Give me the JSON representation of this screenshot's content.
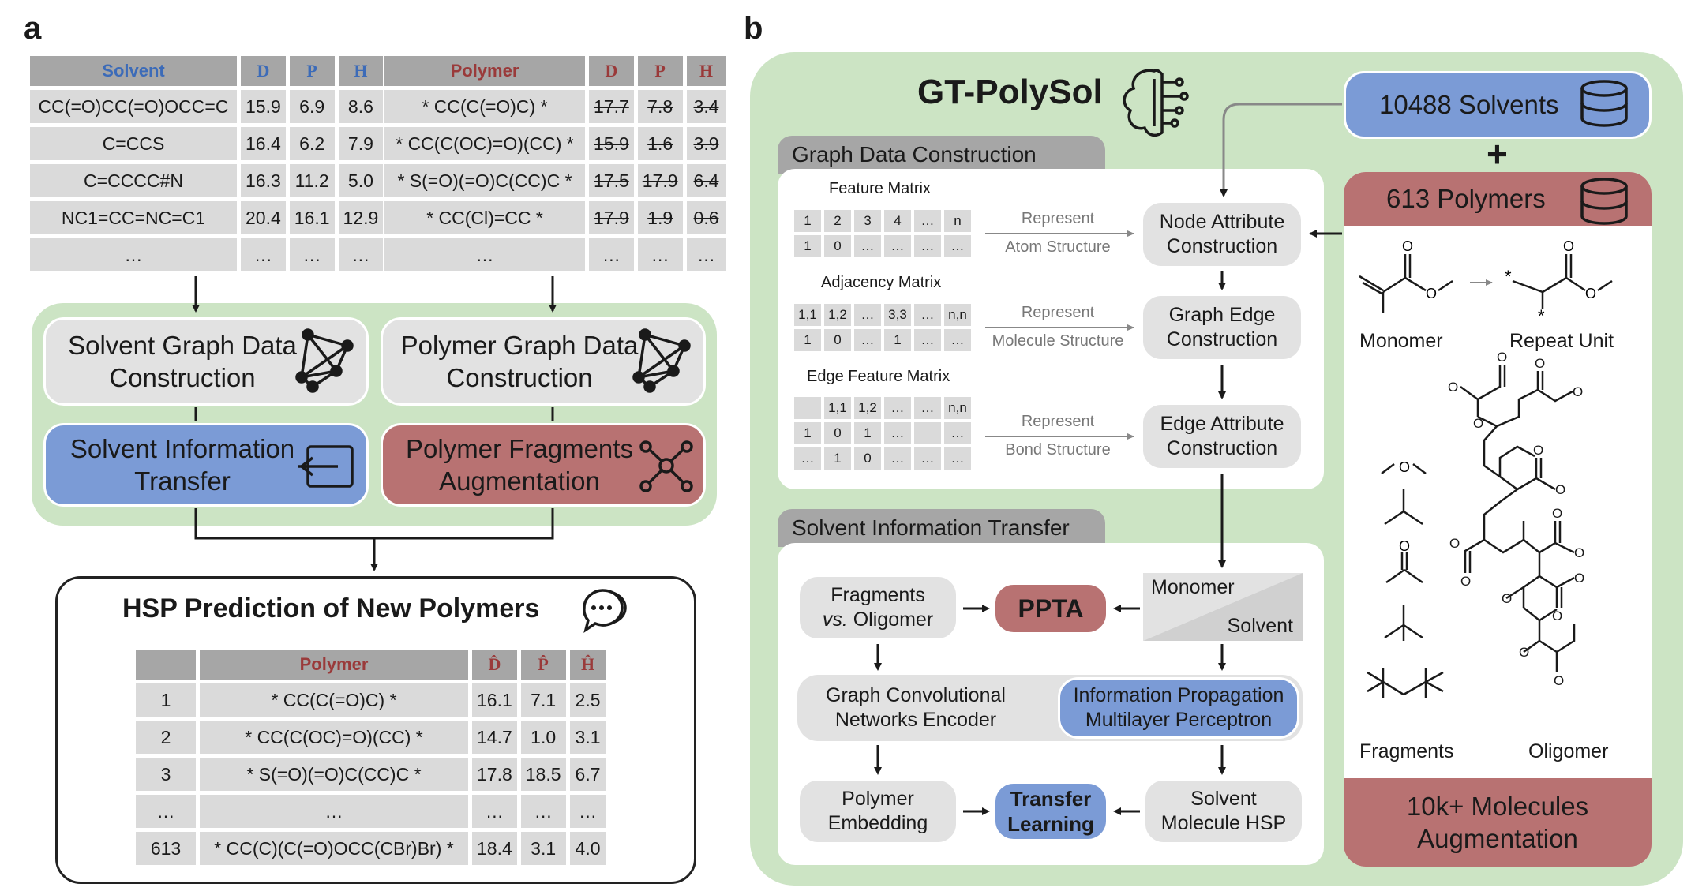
{
  "panel_a": {
    "letter": "a",
    "solvent_table": {
      "headers": [
        "Solvent",
        "D",
        "P",
        "H"
      ],
      "rows": [
        [
          "CC(=O)CC(=O)OCC=C",
          "15.9",
          "6.9",
          "8.6"
        ],
        [
          "C=CCS",
          "16.4",
          "6.2",
          "7.9"
        ],
        [
          "C=CCCC#N",
          "16.3",
          "11.2",
          "5.0"
        ],
        [
          "NC1=CC=NC=C1",
          "20.4",
          "16.1",
          "12.9"
        ],
        [
          "…",
          "…",
          "…",
          "…"
        ]
      ]
    },
    "polymer_table": {
      "headers": [
        "Polymer",
        "D",
        "P",
        "H"
      ],
      "rows": [
        [
          "* CC(C(=O)C) *",
          "17.7",
          "7.8",
          "3.4"
        ],
        [
          "* CC(C(OC)=O)(CC) *",
          "15.9",
          "1.6",
          "3.9"
        ],
        [
          "* S(=O)(=O)C(CC)C *",
          "17.5",
          "17.9",
          "6.4"
        ],
        [
          "* CC(Cl)=CC *",
          "17.9",
          "1.9",
          "0.6"
        ],
        [
          "…",
          "…",
          "…",
          "…"
        ]
      ]
    },
    "solvent_graph": "Solvent Graph Data Construction",
    "polymer_graph": "Polymer Graph Data Construction",
    "solvent_transfer": "Solvent Information Transfer",
    "polymer_fragments": "Polymer Fragments Augmentation",
    "prediction_title": "HSP Prediction of New Polymers",
    "prediction_table": {
      "headers": [
        "",
        "Polymer",
        "D̂",
        "P̂",
        "Ĥ"
      ],
      "rows": [
        [
          "1",
          "* CC(C(=O)C) *",
          "16.1",
          "7.1",
          "2.5"
        ],
        [
          "2",
          "* CC(C(OC)=O)(CC) *",
          "14.7",
          "1.0",
          "3.1"
        ],
        [
          "3",
          "* S(=O)(=O)C(CC)C *",
          "17.8",
          "18.5",
          "6.7"
        ],
        [
          "…",
          "…",
          "…",
          "…",
          "…"
        ],
        [
          "613",
          "* CC(C)(C(=O)OCC(CBr)Br) *",
          "18.4",
          "3.1",
          "4.0"
        ]
      ]
    }
  },
  "panel_b": {
    "letter": "b",
    "title": "GT-PolySol",
    "solvents_db": "10488 Solvents",
    "plus": "+",
    "polymers_db": "613 Polymers",
    "monomer_label": "Monomer",
    "repeat_unit_label": "Repeat Unit",
    "fragments_label": "Fragments",
    "oligomer_label": "Oligomer",
    "augmentation": "10k+ Molecules Augmentation",
    "graph_section": {
      "tab": "Graph Data Construction",
      "feature_matrix": {
        "title": "Feature Matrix",
        "row1": [
          "1",
          "2",
          "3",
          "4",
          "…",
          "n"
        ],
        "row2": [
          "1",
          "0",
          "…",
          "…",
          "…",
          "…"
        ]
      },
      "adjacency_matrix": {
        "title": "Adjacency Matrix",
        "row1": [
          "1,1",
          "1,2",
          "…",
          "3,3",
          "…",
          "n,n"
        ],
        "row2": [
          "1",
          "0",
          "…",
          "1",
          "…",
          "…"
        ]
      },
      "edge_matrix": {
        "title": "Edge Feature Matrix",
        "row1": [
          "",
          "1,1",
          "1,2",
          "…",
          "…",
          "n,n"
        ],
        "row2": [
          "1",
          "0",
          "1",
          "…",
          "",
          "…"
        ],
        "row3": [
          "…",
          "1",
          "0",
          "…",
          "…",
          "…"
        ]
      },
      "represent": "Represent",
      "atom": "Atom Structure",
      "molecule": "Molecule Structure",
      "bond": "Bond Structure",
      "node": "Node Attribute Construction",
      "edge": "Graph Edge Construction",
      "edge_attr": "Edge Attribute Construction"
    },
    "transfer_section": {
      "tab": "Solvent Information Transfer",
      "fragments": "Fragments",
      "vs": "vs.",
      "oligomer": "Oligomer",
      "ppta": "PPTA",
      "monomer": "Monomer",
      "solvent": "Solvent",
      "gcn": "Graph Convolutional Networks Encoder",
      "ipmp": "Information Propagation Multilayer Perceptron",
      "embedding": "Polymer Embedding",
      "transfer": "Transfer Learning",
      "solvent_hsp": "Solvent Molecule HSP"
    }
  },
  "colors": {
    "green": "#cce4c4",
    "blue": "#7b9bd6",
    "red": "#b87272",
    "grey": "#e2e2e2"
  }
}
